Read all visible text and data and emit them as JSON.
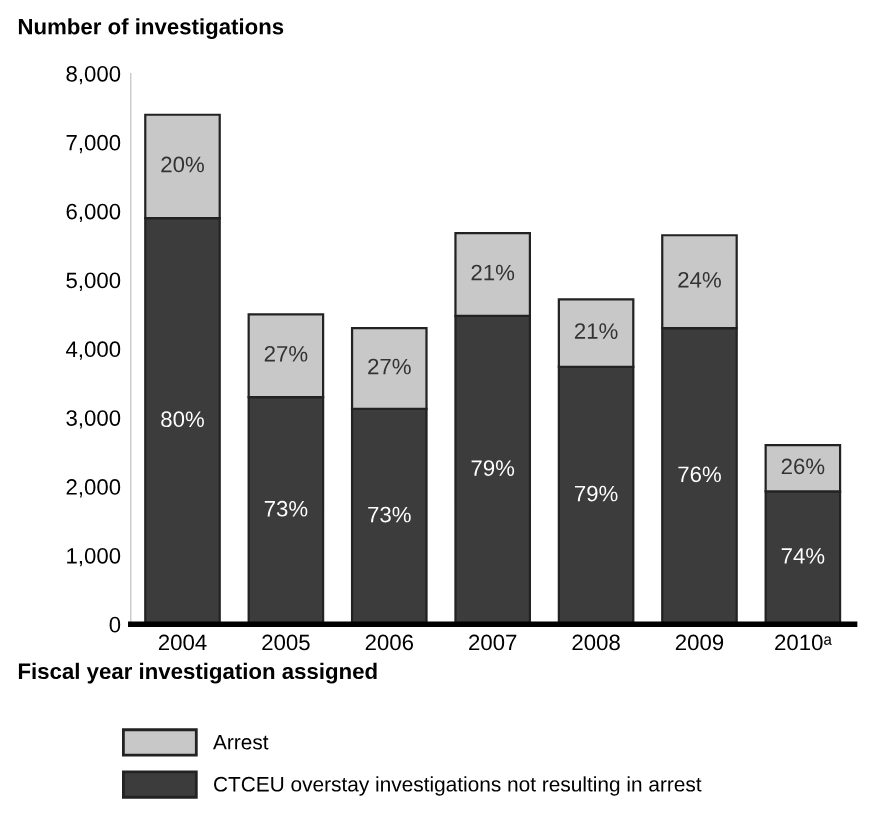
{
  "chart_data": {
    "type": "bar",
    "stacked": true,
    "ylabel": "Number of investigations",
    "xlabel": "Fiscal year investigation assigned",
    "categories": [
      "2004",
      "2005",
      "2006",
      "2007",
      "2008",
      "2009",
      "2010ᵃ"
    ],
    "series": [
      {
        "name": "CTCEU overstay investigations not resulting in arrest",
        "color": "#3c3c3c",
        "values": [
          5900,
          3300,
          3130,
          4480,
          3740,
          4300,
          1930
        ]
      },
      {
        "name": "Arrest",
        "color": "#c8c8c8",
        "values": [
          1500,
          1200,
          1170,
          1200,
          980,
          1350,
          670
        ]
      }
    ],
    "annotations": [
      "80%",
      "73%",
      "73%",
      "79%",
      "79%",
      "76%",
      "74%",
      "20%",
      "27%",
      "27%",
      "21%",
      "21%",
      "24%",
      "26%"
    ],
    "ylim": [
      0,
      8000
    ],
    "yticks": [
      {
        "value": 0,
        "label": "0"
      },
      {
        "value": 1000,
        "label": "1,000"
      },
      {
        "value": 2000,
        "label": "2,000"
      },
      {
        "value": 3000,
        "label": "3,000"
      },
      {
        "value": 4000,
        "label": "4,000"
      },
      {
        "value": 5000,
        "label": "5,000"
      },
      {
        "value": 6000,
        "label": "6,000"
      },
      {
        "value": 7000,
        "label": "7,000"
      },
      {
        "value": 8000,
        "label": "8,000"
      }
    ],
    "grid": false,
    "legend": "bottom"
  }
}
